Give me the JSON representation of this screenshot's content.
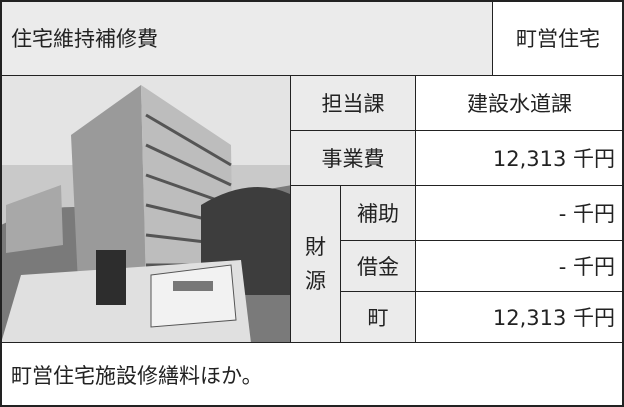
{
  "header": {
    "title": "住宅維持補修費",
    "category": "町営住宅"
  },
  "table": {
    "department_label": "担当課",
    "department": "建設水道課",
    "cost_label": "事業費",
    "cost": "12,313 千円",
    "funding_label": [
      "財",
      "源"
    ],
    "funding": [
      {
        "label": "補助",
        "value": "- 千円"
      },
      {
        "label": "借金",
        "value": "- 千円"
      },
      {
        "label": "町",
        "value": "12,313 千円"
      }
    ]
  },
  "description": "町営住宅施設修繕料ほか。"
}
